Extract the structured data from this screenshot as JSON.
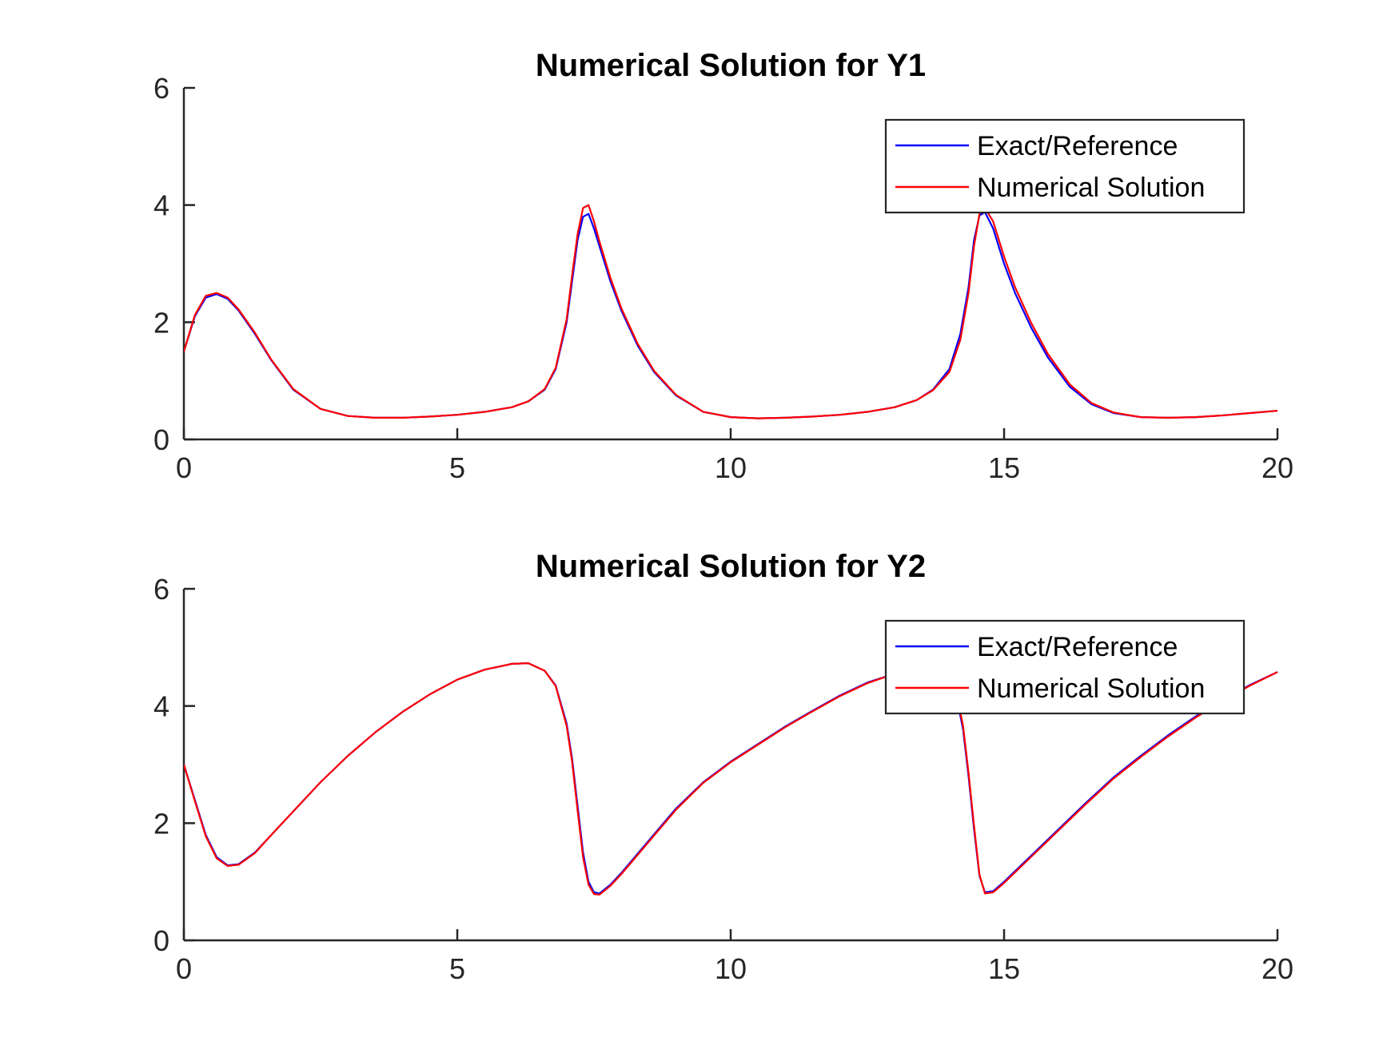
{
  "colors": {
    "exact": "#0000ff",
    "numerical": "#ff0000"
  },
  "chart_data": [
    {
      "type": "line",
      "title": "Numerical Solution for Y1",
      "xlabel": "",
      "ylabel": "",
      "xlim": [
        0,
        20
      ],
      "ylim": [
        0,
        6
      ],
      "xticks": [
        0,
        5,
        10,
        15,
        20
      ],
      "yticks": [
        0,
        2,
        4,
        6
      ],
      "grid": false,
      "legend_position": "top-right",
      "series": [
        {
          "name": "Exact/Reference",
          "color": "#0000ff",
          "x": [
            0,
            0.2,
            0.4,
            0.6,
            0.8,
            1.0,
            1.3,
            1.6,
            2.0,
            2.5,
            3.0,
            3.5,
            4.0,
            4.5,
            5.0,
            5.5,
            6.0,
            6.3,
            6.6,
            6.8,
            7.0,
            7.1,
            7.2,
            7.3,
            7.4,
            7.5,
            7.6,
            7.8,
            8.0,
            8.3,
            8.6,
            9.0,
            9.5,
            10.0,
            10.5,
            11.0,
            11.5,
            12.0,
            12.5,
            13.0,
            13.4,
            13.7,
            14.0,
            14.2,
            14.35,
            14.45,
            14.55,
            14.65,
            14.8,
            15.0,
            15.2,
            15.5,
            15.8,
            16.2,
            16.6,
            17.0,
            17.5,
            18.0,
            18.5,
            19.0,
            19.5,
            20.0
          ],
          "y": [
            1.5,
            2.1,
            2.42,
            2.48,
            2.4,
            2.2,
            1.8,
            1.35,
            0.85,
            0.52,
            0.4,
            0.37,
            0.37,
            0.39,
            0.42,
            0.47,
            0.55,
            0.65,
            0.85,
            1.2,
            2.0,
            2.7,
            3.4,
            3.8,
            3.85,
            3.6,
            3.3,
            2.7,
            2.2,
            1.6,
            1.15,
            0.75,
            0.47,
            0.38,
            0.36,
            0.37,
            0.39,
            0.42,
            0.47,
            0.55,
            0.67,
            0.85,
            1.2,
            1.8,
            2.6,
            3.4,
            3.82,
            3.88,
            3.6,
            3.0,
            2.5,
            1.9,
            1.4,
            0.9,
            0.6,
            0.45,
            0.38,
            0.37,
            0.38,
            0.41,
            0.45,
            0.49
          ]
        },
        {
          "name": "Numerical Solution",
          "color": "#ff0000",
          "x": [
            0,
            0.2,
            0.4,
            0.6,
            0.8,
            1.0,
            1.3,
            1.6,
            2.0,
            2.5,
            3.0,
            3.5,
            4.0,
            4.5,
            5.0,
            5.5,
            6.0,
            6.3,
            6.6,
            6.8,
            7.0,
            7.1,
            7.2,
            7.3,
            7.4,
            7.5,
            7.6,
            7.8,
            8.0,
            8.3,
            8.6,
            9.0,
            9.5,
            10.0,
            10.5,
            11.0,
            11.5,
            12.0,
            12.5,
            13.0,
            13.4,
            13.7,
            14.0,
            14.2,
            14.35,
            14.45,
            14.55,
            14.65,
            14.8,
            15.0,
            15.2,
            15.5,
            15.8,
            16.2,
            16.6,
            17.0,
            17.5,
            18.0,
            18.5,
            19.0,
            19.5,
            20.0
          ],
          "y": [
            1.5,
            2.12,
            2.45,
            2.5,
            2.42,
            2.22,
            1.82,
            1.36,
            0.86,
            0.52,
            0.4,
            0.37,
            0.37,
            0.39,
            0.42,
            0.47,
            0.55,
            0.65,
            0.86,
            1.22,
            2.05,
            2.8,
            3.5,
            3.95,
            4.0,
            3.72,
            3.38,
            2.76,
            2.24,
            1.63,
            1.17,
            0.76,
            0.47,
            0.38,
            0.36,
            0.37,
            0.39,
            0.42,
            0.47,
            0.55,
            0.67,
            0.84,
            1.15,
            1.7,
            2.5,
            3.3,
            3.85,
            3.95,
            3.72,
            3.12,
            2.6,
            1.98,
            1.46,
            0.94,
            0.62,
            0.46,
            0.38,
            0.37,
            0.38,
            0.41,
            0.45,
            0.49
          ]
        }
      ]
    },
    {
      "type": "line",
      "title": "Numerical Solution for Y2",
      "xlabel": "",
      "ylabel": "",
      "xlim": [
        0,
        20
      ],
      "ylim": [
        0,
        6
      ],
      "xticks": [
        0,
        5,
        10,
        15,
        20
      ],
      "yticks": [
        0,
        2,
        4,
        6
      ],
      "grid": false,
      "legend_position": "top-right",
      "series": [
        {
          "name": "Exact/Reference",
          "color": "#0000ff",
          "x": [
            0,
            0.2,
            0.4,
            0.6,
            0.8,
            1.0,
            1.3,
            1.6,
            2.0,
            2.5,
            3.0,
            3.5,
            4.0,
            4.5,
            5.0,
            5.5,
            6.0,
            6.3,
            6.6,
            6.8,
            7.0,
            7.1,
            7.2,
            7.3,
            7.4,
            7.5,
            7.6,
            7.8,
            8.0,
            8.5,
            9.0,
            9.5,
            10.0,
            10.5,
            11.0,
            11.5,
            12.0,
            12.5,
            13.0,
            13.5,
            13.9,
            14.1,
            14.25,
            14.35,
            14.45,
            14.55,
            14.65,
            14.8,
            15.0,
            15.5,
            16.0,
            16.5,
            17.0,
            17.5,
            18.0,
            18.5,
            19.0,
            19.5,
            20.0
          ],
          "y": [
            3.0,
            2.4,
            1.8,
            1.42,
            1.28,
            1.3,
            1.5,
            1.8,
            2.2,
            2.7,
            3.15,
            3.55,
            3.9,
            4.2,
            4.45,
            4.62,
            4.72,
            4.73,
            4.6,
            4.35,
            3.7,
            3.1,
            2.3,
            1.5,
            1.0,
            0.82,
            0.8,
            0.95,
            1.15,
            1.7,
            2.25,
            2.7,
            3.05,
            3.35,
            3.65,
            3.92,
            4.18,
            4.4,
            4.55,
            4.66,
            4.6,
            4.3,
            3.6,
            2.8,
            1.9,
            1.1,
            0.82,
            0.84,
            1.0,
            1.45,
            1.9,
            2.35,
            2.78,
            3.15,
            3.5,
            3.82,
            4.1,
            4.36,
            4.58
          ]
        },
        {
          "name": "Numerical Solution",
          "color": "#ff0000",
          "x": [
            0,
            0.2,
            0.4,
            0.6,
            0.8,
            1.0,
            1.3,
            1.6,
            2.0,
            2.5,
            3.0,
            3.5,
            4.0,
            4.5,
            5.0,
            5.5,
            6.0,
            6.3,
            6.6,
            6.8,
            7.0,
            7.1,
            7.2,
            7.3,
            7.4,
            7.5,
            7.6,
            7.8,
            8.0,
            8.5,
            9.0,
            9.5,
            10.0,
            10.5,
            11.0,
            11.5,
            12.0,
            12.5,
            13.0,
            13.5,
            13.9,
            14.1,
            14.25,
            14.35,
            14.45,
            14.55,
            14.65,
            14.8,
            15.0,
            15.5,
            16.0,
            16.5,
            17.0,
            17.5,
            18.0,
            18.5,
            19.0,
            19.5,
            20.0
          ],
          "y": [
            3.0,
            2.38,
            1.78,
            1.4,
            1.27,
            1.29,
            1.49,
            1.8,
            2.2,
            2.7,
            3.15,
            3.55,
            3.9,
            4.2,
            4.45,
            4.62,
            4.72,
            4.73,
            4.6,
            4.34,
            3.66,
            3.05,
            2.22,
            1.42,
            0.95,
            0.79,
            0.78,
            0.93,
            1.13,
            1.68,
            2.23,
            2.69,
            3.04,
            3.34,
            3.64,
            3.91,
            4.17,
            4.39,
            4.55,
            4.66,
            4.62,
            4.34,
            3.66,
            2.86,
            1.96,
            1.12,
            0.8,
            0.82,
            0.98,
            1.43,
            1.88,
            2.33,
            2.76,
            3.13,
            3.48,
            3.8,
            4.09,
            4.35,
            4.58
          ]
        }
      ]
    }
  ]
}
